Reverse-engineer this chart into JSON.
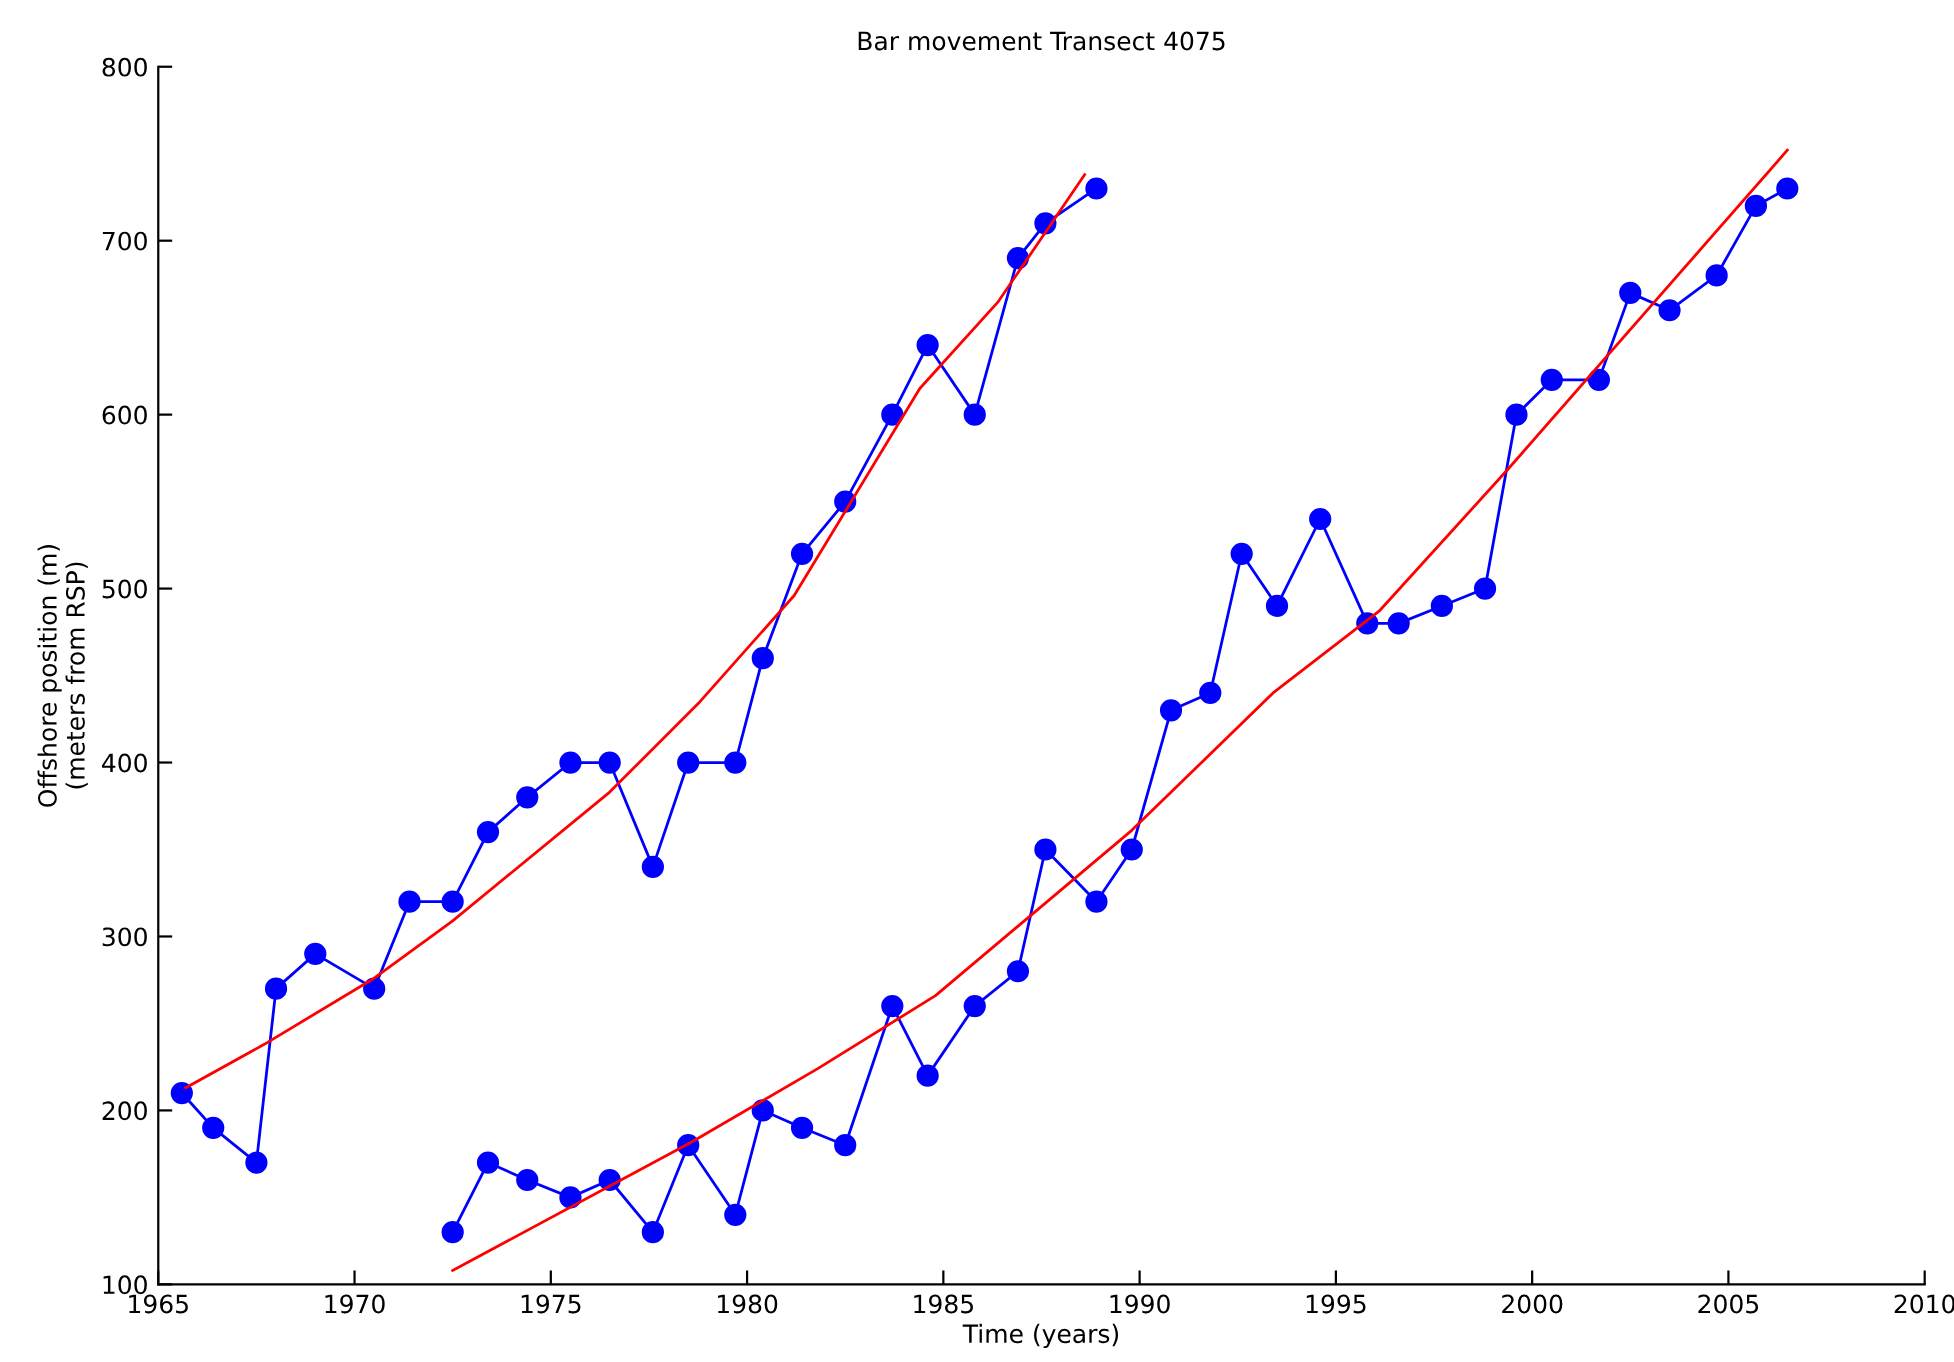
{
  "chart_data": {
    "type": "line",
    "title": "Bar movement Transect 4075",
    "xlabel": "Time (years)",
    "ylabel": "Offshore position (m)\n(meters from RSP)",
    "xlim": [
      1965,
      2010
    ],
    "xticks": [
      1965,
      1970,
      1975,
      1980,
      1985,
      1990,
      1995,
      2000,
      2005,
      2010
    ],
    "ylim": [
      100,
      800
    ],
    "yticks": [
      100,
      200,
      300,
      400,
      500,
      600,
      700,
      800
    ],
    "grid": false,
    "series": [
      {
        "color": "#0000ff",
        "marker": "circle",
        "line_style": "solid",
        "x": [
          1965.6,
          1966.4,
          1967.5,
          1968.0,
          1969.0,
          1970.5,
          1971.4,
          1972.5,
          1973.4,
          1974.4,
          1975.5,
          1976.5,
          1977.6,
          1978.5,
          1979.7,
          1980.4,
          1981.4,
          1982.5,
          1983.7,
          1984.6,
          1985.8,
          1986.9,
          1987.6,
          1988.9
        ],
        "values": [
          210,
          190,
          170,
          270,
          290,
          270,
          320,
          320,
          360,
          380,
          400,
          400,
          340,
          400,
          400,
          460,
          520,
          550,
          600,
          640,
          600,
          690,
          710,
          730
        ]
      },
      {
        "color": "#ff0000",
        "marker": "none",
        "line_style": "solid",
        "x": [
          1965.7,
          1967.7,
          1970.5,
          1972.5,
          1976.5,
          1978.8,
          1981.2,
          1984.4,
          1986.4,
          1988.6
        ],
        "values": [
          213,
          238,
          276,
          309,
          383,
          435,
          496,
          615,
          665,
          738
        ]
      },
      {
        "color": "#0000ff",
        "marker": "circle",
        "line_style": "solid",
        "x": [
          1972.5,
          1973.4,
          1974.4,
          1975.5,
          1976.5,
          1977.6,
          1978.5,
          1979.7,
          1980.4,
          1981.4,
          1982.5,
          1983.7,
          1984.6,
          1985.8,
          1986.9,
          1987.6,
          1988.9,
          1989.8,
          1990.8,
          1991.8,
          1992.6,
          1993.5,
          1994.6,
          1995.8,
          1996.6,
          1997.7,
          1998.8,
          1999.6,
          2000.5,
          2001.7,
          2002.5,
          2003.5,
          2004.7,
          2005.7,
          2006.5
        ],
        "values": [
          130,
          170,
          160,
          150,
          160,
          130,
          180,
          140,
          200,
          190,
          180,
          260,
          220,
          260,
          280,
          350,
          320,
          350,
          430,
          440,
          520,
          490,
          540,
          480,
          480,
          490,
          500,
          600,
          620,
          620,
          670,
          660,
          680,
          720,
          730
        ]
      },
      {
        "color": "#ff0000",
        "marker": "none",
        "line_style": "solid",
        "x": [
          1972.5,
          1978.6,
          1981.8,
          1984.8,
          1989.8,
          1993.4,
          1996.1,
          1999.4,
          2006.5
        ],
        "values": [
          108,
          182,
          224,
          266,
          361,
          440,
          487,
          569,
          752
        ]
      }
    ]
  }
}
